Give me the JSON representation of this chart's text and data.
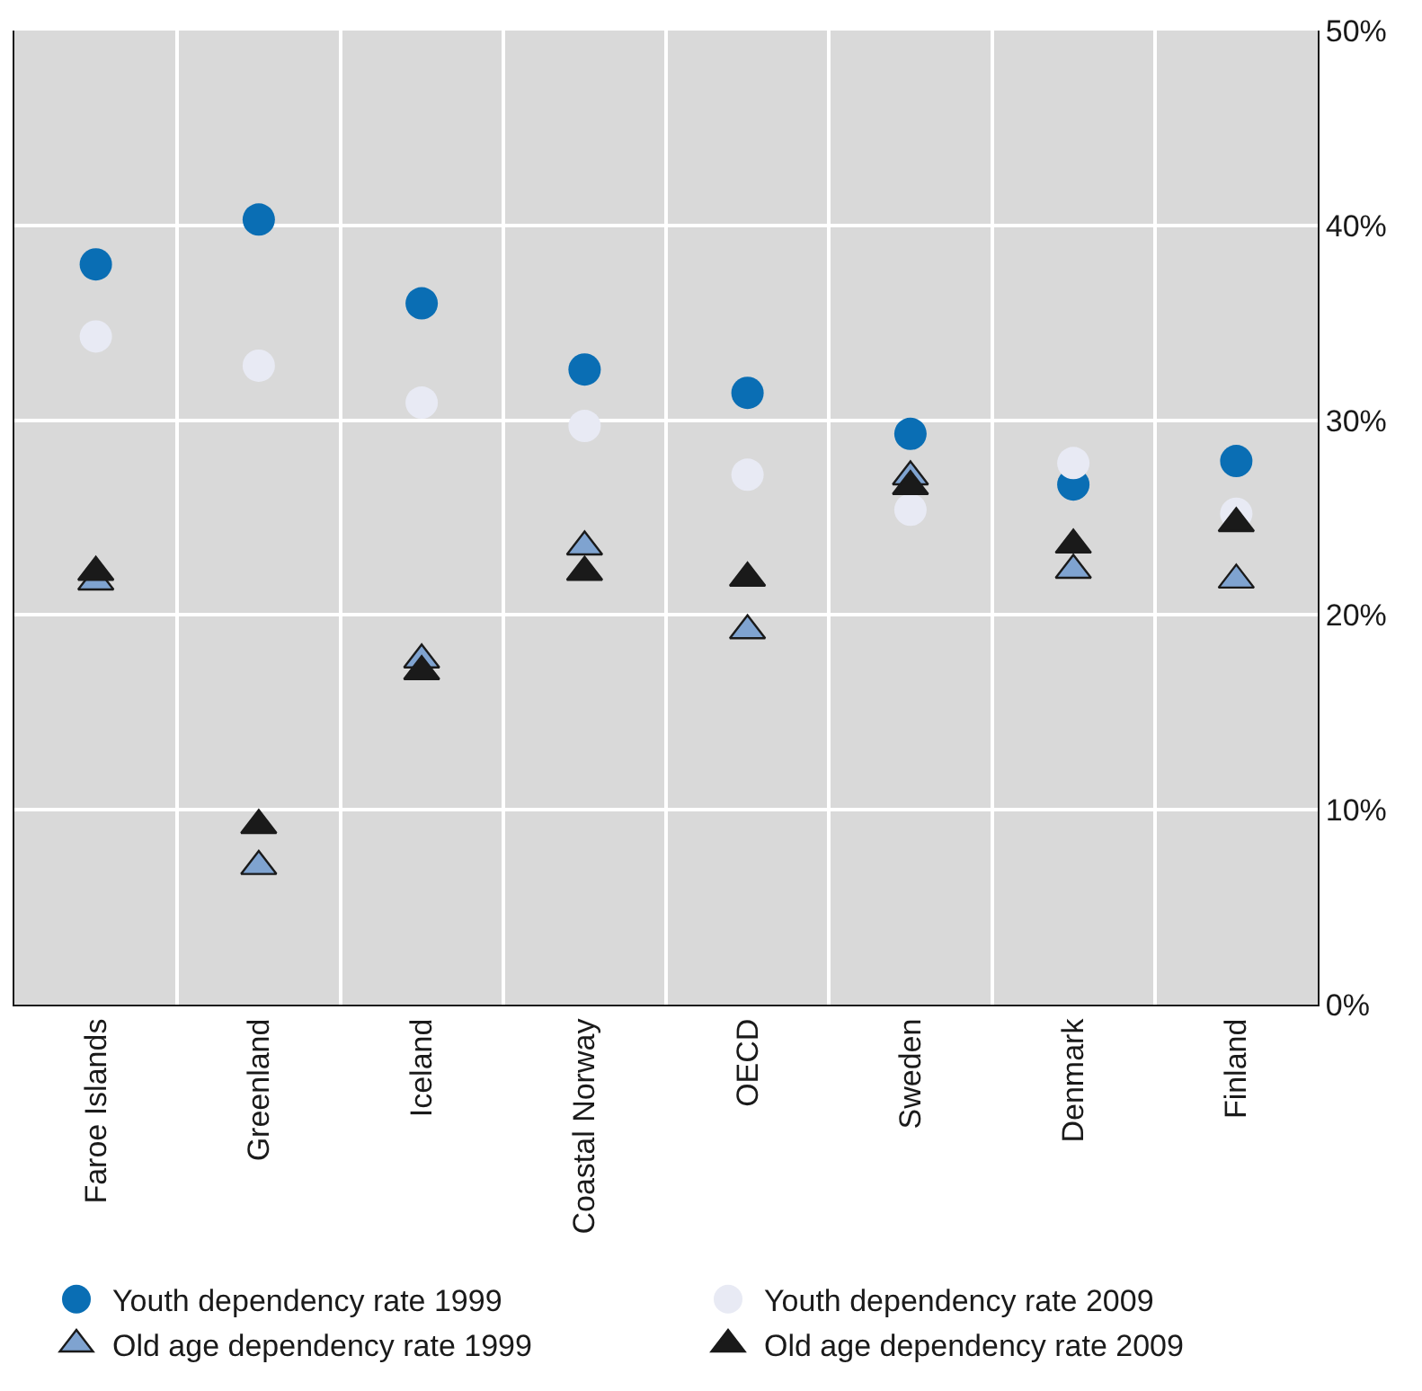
{
  "chart_data": {
    "type": "scatter",
    "categories": [
      "Faroe Islands",
      "Greenland",
      "Iceland",
      "Coastal Norway",
      "OECD",
      "Sweden",
      "Denmark",
      "Finland"
    ],
    "series": [
      {
        "name": "Youth dependency rate 1999",
        "color": "#0a6eb4",
        "marker": "circle",
        "values": [
          38.0,
          40.3,
          36.0,
          32.6,
          31.4,
          29.3,
          26.7,
          27.9
        ]
      },
      {
        "name": "Youth dependency rate 2009",
        "color": "#e8eaf4",
        "marker": "circle",
        "values": [
          34.3,
          32.8,
          30.9,
          29.7,
          27.2,
          25.4,
          27.8,
          25.2
        ]
      },
      {
        "name": "Old age dependency rate 1999",
        "color": "#7fa3d0",
        "marker": "triangle",
        "values": [
          21.7,
          7.1,
          17.7,
          23.5,
          19.2,
          27.1,
          22.3,
          21.8
        ]
      },
      {
        "name": "Old age dependency rate 2009",
        "color": "#1a1a1a",
        "marker": "triangle",
        "values": [
          22.2,
          9.2,
          17.1,
          22.2,
          21.9,
          26.6,
          23.6,
          24.7
        ]
      }
    ],
    "ylim": [
      0,
      50
    ],
    "yticks": [
      {
        "value": 0,
        "label": "0%"
      },
      {
        "value": 10,
        "label": "10%"
      },
      {
        "value": 20,
        "label": "20%"
      },
      {
        "value": 30,
        "label": "30%"
      },
      {
        "value": 40,
        "label": "40%"
      },
      {
        "value": 50,
        "label": "50%"
      }
    ],
    "grid": true,
    "legend": "bottom"
  }
}
